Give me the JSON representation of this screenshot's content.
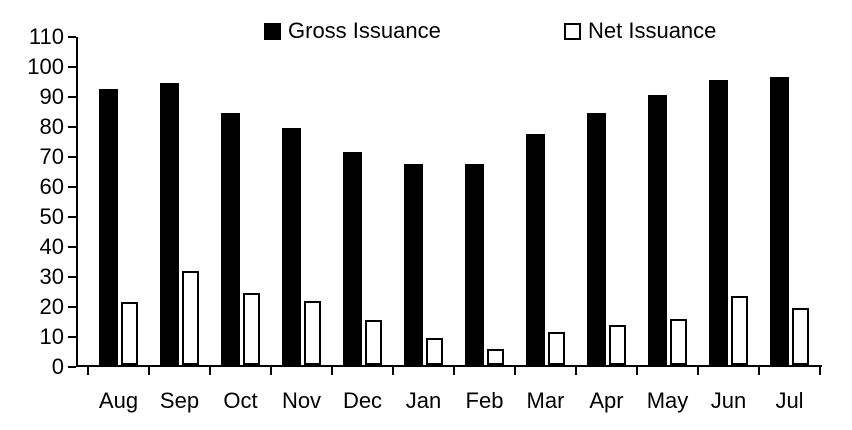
{
  "chart_data": {
    "type": "bar",
    "title": "",
    "categories": [
      "Aug",
      "Sep",
      "Oct",
      "Nov",
      "Dec",
      "Jan",
      "Feb",
      "Mar",
      "Apr",
      "May",
      "Jun",
      "Jul"
    ],
    "series": [
      {
        "name": "Gross Issuance",
        "values": [
          92,
          94,
          84,
          79,
          71,
          67,
          67,
          77,
          84,
          90,
          95,
          96
        ],
        "fill": "#000000",
        "outline": "#000000"
      },
      {
        "name": "Net Issuance",
        "values": [
          21,
          31.5,
          24,
          21.5,
          15,
          9,
          5.5,
          11,
          13.5,
          15.5,
          23,
          19
        ],
        "fill": "#ffffff",
        "outline": "#000000"
      }
    ],
    "xlabel": "",
    "ylabel": "",
    "ylim": [
      0,
      110
    ],
    "yticks": [
      0,
      10,
      20,
      30,
      40,
      50,
      60,
      70,
      80,
      90,
      100,
      110
    ],
    "grid": false,
    "legend_position": "top",
    "colors": {
      "axis": "#000000",
      "text": "#000000",
      "background": "#ffffff"
    }
  }
}
